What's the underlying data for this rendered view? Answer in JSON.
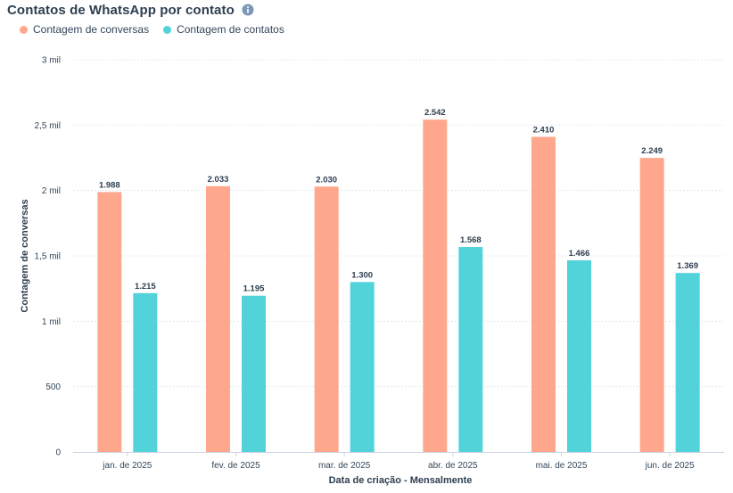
{
  "title": "Contatos de WhatsApp por contato",
  "info_icon": "info-icon",
  "colors": {
    "series1": "#ffa78c",
    "series2": "#51d3d9",
    "grid": "#e4e9ef",
    "axis": "#cbd6e2",
    "text": "#33475b"
  },
  "chart_data": {
    "type": "bar",
    "title": "Contatos de WhatsApp por contato",
    "xlabel": "Data de criação - Mensalmente",
    "ylabel": "Contagem de conversas",
    "ylim": [
      0,
      3000
    ],
    "grid": true,
    "legend_position": "top-left",
    "yticks": [
      0,
      500,
      1000,
      1500,
      2000,
      2500,
      3000
    ],
    "ytick_labels": [
      "0",
      "500",
      "1 mil",
      "1,5 mil",
      "2 mil",
      "2,5 mil",
      "3 mil"
    ],
    "categories": [
      "jan. de 2025",
      "fev. de 2025",
      "mar. de 2025",
      "abr. de 2025",
      "mai. de 2025",
      "jun. de 2025"
    ],
    "series": [
      {
        "name": "Contagem de conversas",
        "values": [
          1988,
          2033,
          2030,
          2542,
          2410,
          2249
        ],
        "labels": [
          "1.988",
          "2.033",
          "2.030",
          "2.542",
          "2.410",
          "2.249"
        ]
      },
      {
        "name": "Contagem de contatos",
        "values": [
          1215,
          1195,
          1300,
          1568,
          1466,
          1369
        ],
        "labels": [
          "1.215",
          "1.195",
          "1.300",
          "1.568",
          "1.466",
          "1.369"
        ]
      }
    ]
  }
}
